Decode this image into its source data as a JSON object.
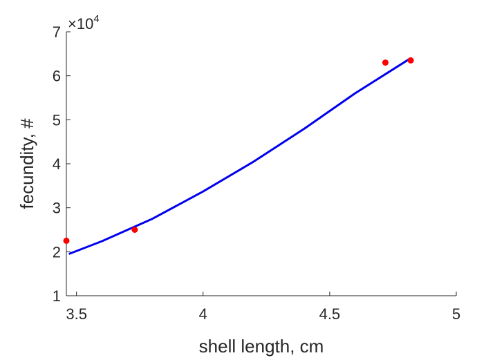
{
  "chart_data": {
    "type": "scatter",
    "xlabel": "shell length, cm",
    "ylabel": "fecundity, #",
    "xlim": [
      3.46,
      5.0
    ],
    "ylim": [
      1,
      7
    ],
    "y_multiplier": {
      "base": "10",
      "exponent": "4"
    },
    "x_ticks": [
      {
        "value": 3.5,
        "label": "3.5"
      },
      {
        "value": 4.0,
        "label": "4"
      },
      {
        "value": 4.5,
        "label": "4.5"
      },
      {
        "value": 5.0,
        "label": "5"
      }
    ],
    "y_ticks": [
      {
        "value": 1,
        "label": "1"
      },
      {
        "value": 2,
        "label": "2"
      },
      {
        "value": 3,
        "label": "3"
      },
      {
        "value": 4,
        "label": "4"
      },
      {
        "value": 5,
        "label": "5"
      },
      {
        "value": 6,
        "label": "6"
      },
      {
        "value": 7,
        "label": "7"
      }
    ],
    "points": {
      "color": "#ff0000",
      "x": [
        3.46,
        3.73,
        4.72,
        4.82
      ],
      "y": [
        2.25,
        2.5,
        6.3,
        6.35
      ]
    },
    "fit_line": {
      "color": "#0000ee",
      "x": [
        3.47,
        3.6,
        3.8,
        4.0,
        4.2,
        4.4,
        4.6,
        4.82
      ],
      "y": [
        1.95,
        2.24,
        2.75,
        3.37,
        4.05,
        4.8,
        5.6,
        6.4
      ]
    },
    "grid": false,
    "legend": "none"
  }
}
